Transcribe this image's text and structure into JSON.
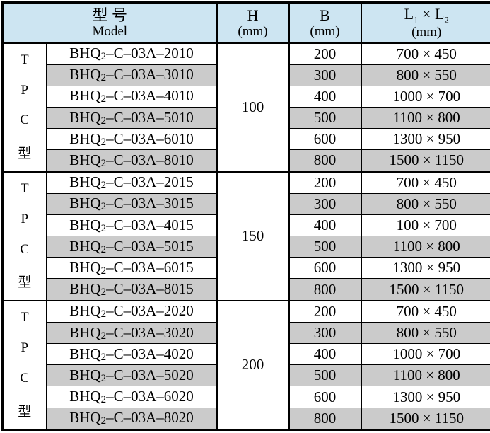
{
  "header": {
    "model": {
      "line1": "型 号",
      "line2": "Model"
    },
    "h": {
      "line1": "H",
      "line2": "(mm)"
    },
    "b": {
      "line1": "B",
      "line2": "(mm)"
    },
    "l": {
      "base1": "L",
      "sub1": "1",
      "times": " × ",
      "base2": "L",
      "sub2": "2",
      "line2": "(mm)"
    }
  },
  "side_label": [
    "T",
    "P",
    "C",
    "型"
  ],
  "model_prefix": "BHQ",
  "model_sub": "2",
  "groups": [
    {
      "h": "100",
      "rows": [
        {
          "model_rest": "–C–03A–2010",
          "b": "200",
          "l": "700 × 450"
        },
        {
          "model_rest": "–C–03A–3010",
          "b": "300",
          "l": "800 × 550"
        },
        {
          "model_rest": "–C–03A–4010",
          "b": "400",
          "l": "1000 × 700"
        },
        {
          "model_rest": "–C–03A–5010",
          "b": "500",
          "l": "1100 × 800"
        },
        {
          "model_rest": "–C–03A–6010",
          "b": "600",
          "l": "1300 × 950"
        },
        {
          "model_rest": "–C–03A–8010",
          "b": "800",
          "l": "1500 × 1150"
        }
      ]
    },
    {
      "h": "150",
      "rows": [
        {
          "model_rest": "–C–03A–2015",
          "b": "200",
          "l": "700 × 450"
        },
        {
          "model_rest": "–C–03A–3015",
          "b": "300",
          "l": "800 × 550"
        },
        {
          "model_rest": "–C–03A–4015",
          "b": "400",
          "l": "100 × 700"
        },
        {
          "model_rest": "–C–03A–5015",
          "b": "500",
          "l": "1100 × 800"
        },
        {
          "model_rest": "–C–03A–6015",
          "b": "600",
          "l": "1300 × 950"
        },
        {
          "model_rest": "–C–03A–8015",
          "b": "800",
          "l": "1500 × 1150"
        }
      ]
    },
    {
      "h": "200",
      "rows": [
        {
          "model_rest": "–C–03A–2020",
          "b": "200",
          "l": "700 × 450"
        },
        {
          "model_rest": "–C–03A–3020",
          "b": "300",
          "l": "800 × 550"
        },
        {
          "model_rest": "–C–03A–4020",
          "b": "400",
          "l": "1000 × 700"
        },
        {
          "model_rest": "–C–03A–5020",
          "b": "500",
          "l": "1100 × 800"
        },
        {
          "model_rest": "–C–03A–6020",
          "b": "600",
          "l": "1300 × 950"
        },
        {
          "model_rest": "–C–03A–8020",
          "b": "800",
          "l": "1500 × 1150"
        }
      ]
    }
  ],
  "colors": {
    "header_bg": "#cde5f2",
    "stripe_bg": "#cbcbcb",
    "border": "#000000"
  }
}
